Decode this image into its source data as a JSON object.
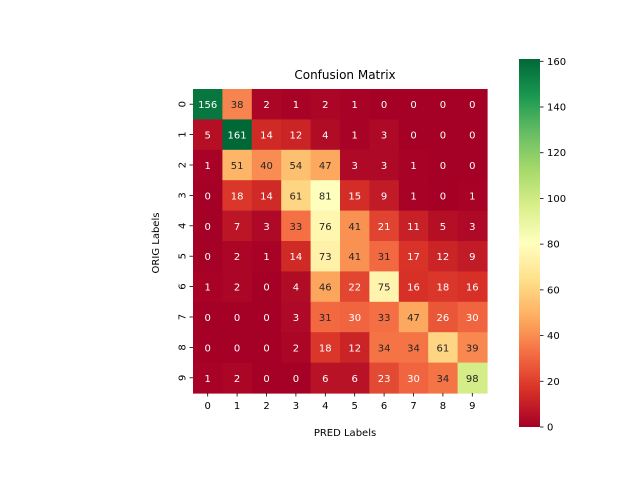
{
  "chart_data": {
    "type": "heatmap",
    "title": "Confusion Matrix",
    "xlabel": "PRED Labels",
    "ylabel": "ORIG Labels",
    "x_categories": [
      "0",
      "1",
      "2",
      "3",
      "4",
      "5",
      "6",
      "7",
      "8",
      "9"
    ],
    "y_categories": [
      "0",
      "1",
      "2",
      "3",
      "4",
      "5",
      "6",
      "7",
      "8",
      "9"
    ],
    "values": [
      [
        156,
        38,
        2,
        1,
        2,
        1,
        0,
        0,
        0,
        0
      ],
      [
        5,
        161,
        14,
        12,
        4,
        1,
        3,
        0,
        0,
        0
      ],
      [
        1,
        51,
        40,
        54,
        47,
        3,
        3,
        1,
        0,
        0
      ],
      [
        0,
        18,
        14,
        61,
        81,
        15,
        9,
        1,
        0,
        1
      ],
      [
        0,
        7,
        3,
        33,
        76,
        41,
        21,
        11,
        5,
        3
      ],
      [
        0,
        2,
        1,
        14,
        73,
        41,
        31,
        17,
        12,
        9
      ],
      [
        1,
        2,
        0,
        4,
        46,
        22,
        75,
        16,
        18,
        16
      ],
      [
        0,
        0,
        0,
        3,
        31,
        30,
        33,
        47,
        26,
        30
      ],
      [
        0,
        0,
        0,
        2,
        18,
        12,
        34,
        34,
        61,
        39
      ],
      [
        1,
        2,
        0,
        0,
        6,
        6,
        23,
        30,
        34,
        98
      ]
    ],
    "colormap": "RdYlGn",
    "colorbar": {
      "range": [
        0,
        161
      ],
      "ticks": [
        0,
        20,
        40,
        60,
        80,
        100,
        120,
        140,
        160
      ]
    },
    "annotations": true
  }
}
